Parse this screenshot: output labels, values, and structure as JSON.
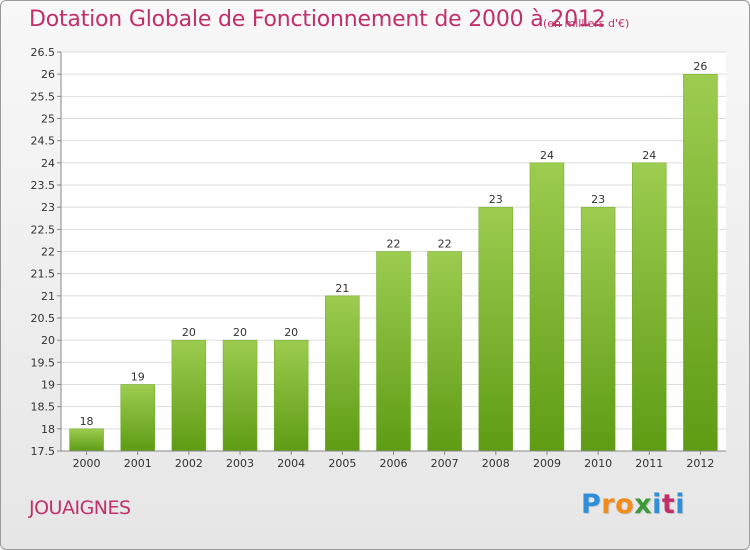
{
  "title": "Dotation Globale de Fonctionnement de 2000 à 2012",
  "subtitle": "(en milliers d'€)",
  "commune": "JOUAIGNES",
  "logo": {
    "letters": [
      "P",
      "r",
      "o",
      "x",
      "i",
      "t",
      "i"
    ],
    "colors": [
      "#2f8fd8",
      "#f28c1a",
      "#f28c1a",
      "#3a9a3a",
      "#2f8fd8",
      "#c0306a",
      "#2f8fd8"
    ]
  },
  "chart_data": {
    "type": "bar",
    "categories": [
      "2000",
      "2001",
      "2002",
      "2003",
      "2004",
      "2005",
      "2006",
      "2007",
      "2008",
      "2009",
      "2010",
      "2011",
      "2012"
    ],
    "values": [
      18,
      19,
      20,
      20,
      20,
      21,
      22,
      22,
      23,
      24,
      23,
      24,
      26
    ],
    "data_labels": [
      "18",
      "19",
      "20",
      "20",
      "20",
      "21",
      "22",
      "22",
      "23",
      "24",
      "23",
      "24",
      "26"
    ],
    "title": "Dotation Globale de Fonctionnement de 2000 à 2012",
    "ylim": [
      17.5,
      26.5
    ],
    "yticks": [
      "17.5",
      "18",
      "18.5",
      "19",
      "19.5",
      "20",
      "20.5",
      "21",
      "21.5",
      "22",
      "22.5",
      "23",
      "23.5",
      "24",
      "24.5",
      "25",
      "25.5",
      "26",
      "26.5"
    ],
    "grid": true,
    "bar_color_top": "#9ccc50",
    "bar_color_bottom": "#5e9c14"
  }
}
